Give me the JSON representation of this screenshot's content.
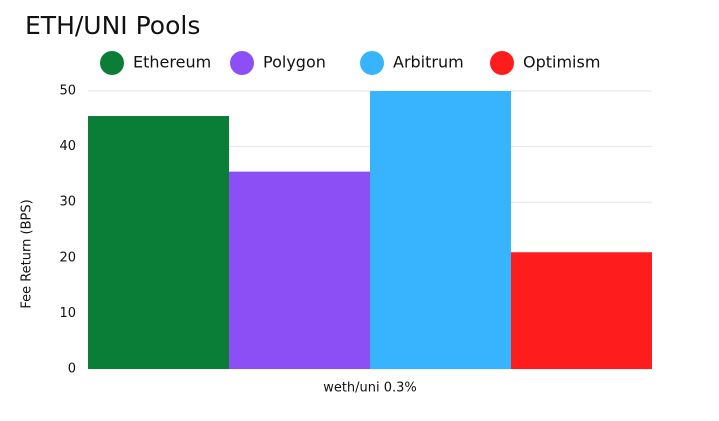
{
  "chart_data": {
    "type": "bar",
    "title": "ETH/UNI Pools",
    "y_label": "Fee Return (BPS)",
    "categories": [
      "weth/uni 0.3%"
    ],
    "series": [
      {
        "name": "Ethereum",
        "color": "#0a7d36",
        "values": [
          45.5
        ]
      },
      {
        "name": "Polygon",
        "color": "#8c4ff5",
        "values": [
          35.5
        ]
      },
      {
        "name": "Arbitrum",
        "color": "#38b4ff",
        "values": [
          50
        ]
      },
      {
        "name": "Optimism",
        "color": "#ff1c1c",
        "values": [
          21
        ]
      }
    ],
    "ylim": [
      0,
      50
    ],
    "yticks": [
      0,
      10,
      20,
      30,
      40,
      50
    ],
    "grid": true,
    "legend": "top"
  }
}
